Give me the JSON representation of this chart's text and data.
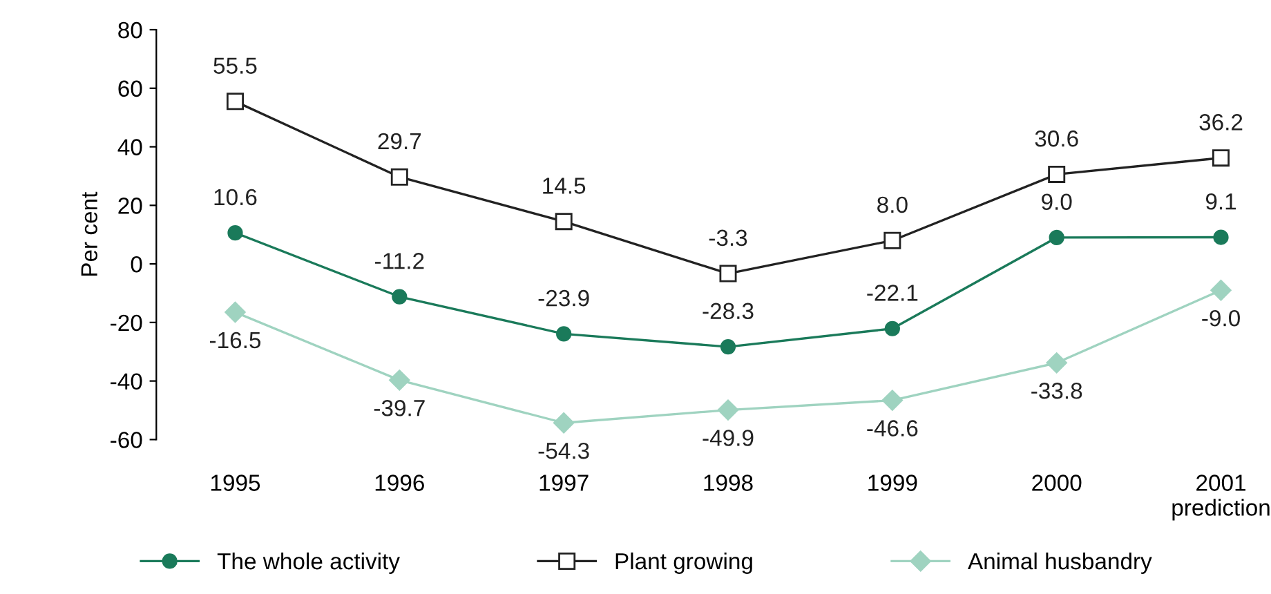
{
  "chart_data": {
    "type": "line",
    "ylabel": "Per cent",
    "categories": [
      "1995",
      "1996",
      "1997",
      "1998",
      "1999",
      "2000",
      "2001\nprediction"
    ],
    "ylim": [
      -60,
      80
    ],
    "yticks": [
      -60,
      -40,
      -20,
      0,
      20,
      40,
      60,
      80
    ],
    "grid": false,
    "legend": "bottom",
    "line_style": "solid",
    "series": [
      {
        "name": "The whole activity",
        "color": "#1a7a5a",
        "marker": "circle",
        "values": [
          10.6,
          -11.2,
          -23.9,
          -28.3,
          -22.1,
          9.0,
          9.1
        ],
        "value_labels": [
          "10.6",
          "-11.2",
          "-23.9",
          "-28.3",
          "-22.1",
          "9.0",
          "9.1"
        ]
      },
      {
        "name": "Plant growing",
        "color": "#222222",
        "marker": "square",
        "values": [
          55.5,
          29.7,
          14.5,
          -3.3,
          8.0,
          30.6,
          36.2
        ],
        "value_labels": [
          "55.5",
          "29.7",
          "14.5",
          "-3.3",
          "8.0",
          "30.6",
          "36.2"
        ]
      },
      {
        "name": "Animal husbandry",
        "color": "#9fd3c0",
        "marker": "diamond",
        "values": [
          -16.5,
          -39.7,
          -54.3,
          -49.9,
          -46.6,
          -33.8,
          -9.0
        ],
        "value_labels": [
          "-16.5",
          "-39.7",
          "-54.3",
          "-49.9",
          "-46.6",
          "-33.8",
          "-9.0"
        ]
      }
    ]
  }
}
